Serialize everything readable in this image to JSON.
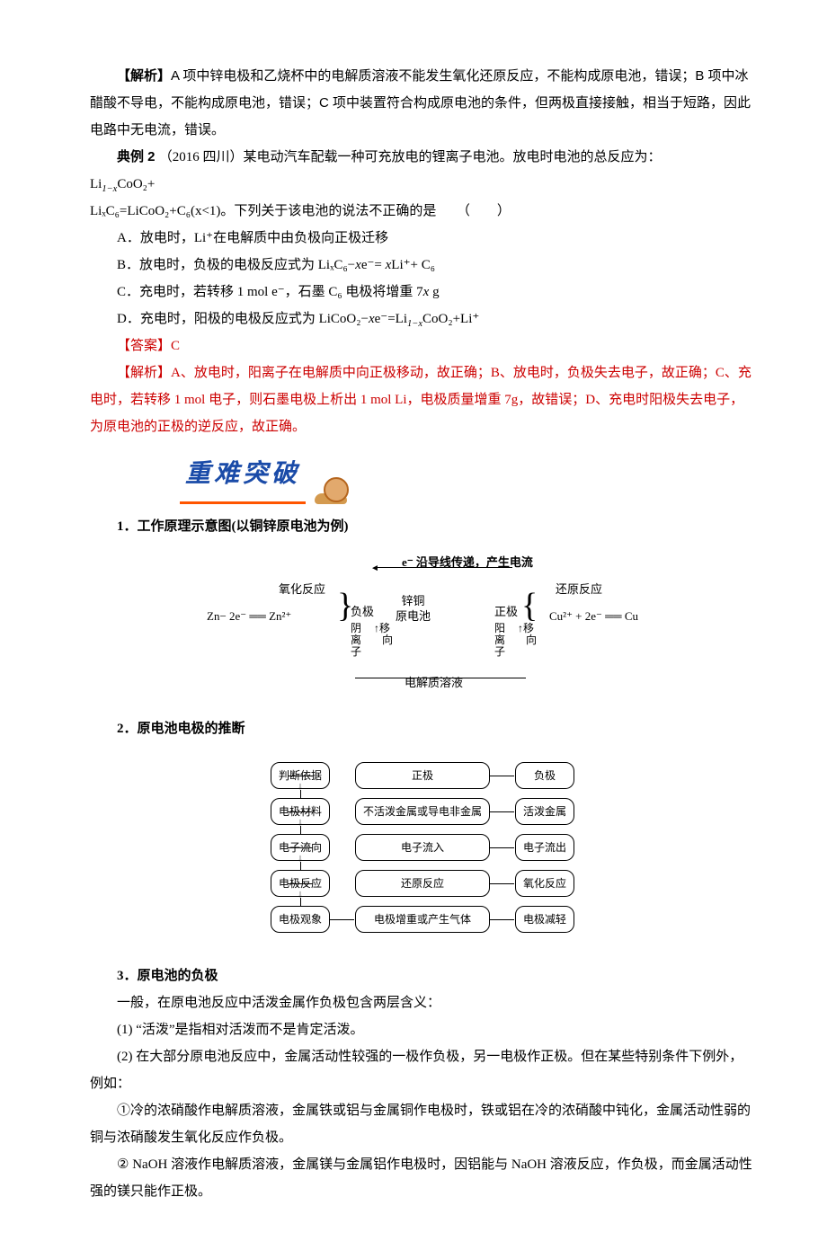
{
  "p1_prefix": "【解析】",
  "p1": "A 项中锌电极和乙烧杯中的电解质溶液不能发生氧化还原反应，不能构成原电池，错误；B 项中冰醋酸不导电，不能构成原电池，错误；C 项中装置符合构成原电池的条件，但两极直接接触，相当于短路，因此电路中无电流，错误。",
  "ex2_label": "典例 2 ",
  "ex2_source": "（2016 四川）某电动汽车配载一种可充放电的锂离子电池。放电时电池的总反应为：",
  "eq_line1": "Li",
  "eq_line1_sub": "1−x",
  "eq_line1_tail": "CoO₂+",
  "eq_line2_a": "LiₓC₆=LiCoO₂+C₆(x<1)。下列关于该电池的说法不正确的是　　（　　）",
  "optA": "A．放电时，Li⁺在电解质中由负极向正极迁移",
  "optB_a": "B．放电时，负极的电极反应式为 LiₓC₆−",
  "optB_x1": "x",
  "optB_b": "e⁻= ",
  "optB_x2": "x",
  "optB_c": "Li⁺+ C₆",
  "optC_a": "C．充电时，若转移 1 mol e⁻，石墨 C₆ 电极将增重 7",
  "optC_x": "x",
  "optC_b": " g",
  "optD_a": "D．充电时，阳极的电极反应式为 LiCoO₂−",
  "optD_x": "x",
  "optD_b": "e⁻=Li",
  "optD_sub": "1−x",
  "optD_c": "CoO₂+Li⁺",
  "ans_label": "【答案】",
  "ans": "C",
  "explain_label": "【解析】",
  "explain": "A、放电时，阳离子在电解质中向正极移动，故正确；B、放电时，负极失去电子，故正确；C、充电时，若转移 1 mol 电子，则石墨电极上析出 1 mol Li，电极质量增重 7g，故错误；D、充电时阳极失去电子，为原电池的正极的逆反应，故正确。",
  "header_img": "重难突破",
  "h1": "1．工作原理示意图(以铜锌原电池为例)",
  "h2": "2．原电池电极的推断",
  "h3": "3．原电池的负极",
  "p_neg1": "一般，在原电池反应中活泼金属作负极包含两层含义：",
  "p_neg2": "(1) “活泼”是指相对活泼而不是肯定活泼。",
  "p_neg3": "(2) 在大部分原电池反应中，金属活动性较强的一极作负极，另一电极作正极。但在某些特别条件下例外，例如：",
  "p_neg4": "①冷的浓硝酸作电解质溶液，金属铁或铝与金属铜作电极时，铁或铝在冷的浓硝酸中钝化，金属活动性弱的铜与浓硝酸发生氧化反应作负极。",
  "p_neg5": "② NaOH 溶液作电解质溶液，金属镁与金属铝作电极时，因铝能与 NaOH 溶液反应，作负极，而金属活动性强的镁只能作正极。",
  "d1": {
    "top": "e⁻ 沿导线传递，产生电流",
    "oxid": "氧化反应",
    "reduc": "还原反应",
    "eq_left": "Zn− 2e⁻ ══ Zn²⁺",
    "eq_right": "Cu²⁺ + 2e⁻ ══ Cu",
    "neg": "负极",
    "pos": "正极",
    "cell1": "锌铜",
    "cell2": "原电池",
    "yin": "阴离子",
    "yang": "阳离子",
    "move": "移向",
    "bottom": "电解质溶液"
  },
  "d2": {
    "r1": [
      "判断依据",
      "正极",
      "负极"
    ],
    "r2": [
      "电极材料",
      "不活泼金属或导电非金属",
      "活泼金属"
    ],
    "r3": [
      "电子流向",
      "电子流入",
      "电子流出"
    ],
    "r4": [
      "电极反应",
      "还原反应",
      "氧化反应"
    ],
    "r5": [
      "电极观象",
      "电极增重或产生气体",
      "电极减轻"
    ]
  }
}
